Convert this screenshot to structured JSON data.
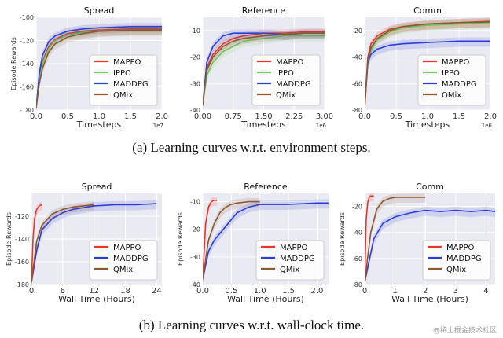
{
  "captions": {
    "top": "(a) Learning curves w.r.t. environment steps.",
    "bottom": "(b) Learning curves w.r.t. wall-clock time."
  },
  "watermark": "@稀土掘金技术社区",
  "colors": {
    "MAPPO": "#e8362a",
    "IPPO": "#6fcf5f",
    "MADDPG": "#2b3fd6",
    "QMix": "#8b5a34"
  },
  "chart_data": [
    {
      "type": "line",
      "title": "Spread",
      "xlabel": "Timesteps",
      "ylabel": "Episode Rewards",
      "xlim": [
        0,
        2.0
      ],
      "ylim": [
        -180,
        -100
      ],
      "xticks": [
        "0.0",
        "0.5",
        "1.0",
        "1.5",
        "2.0"
      ],
      "xtickvals": [
        0,
        0.5,
        1.0,
        1.5,
        2.0
      ],
      "yticks": [
        "-100",
        "-120",
        "-140",
        "-160",
        "-180"
      ],
      "ytickvals": [
        -100,
        -120,
        -140,
        -160,
        -180
      ],
      "xscale": "1e7",
      "legend": [
        "MAPPO",
        "IPPO",
        "MADDPG",
        "QMix"
      ],
      "legend_pos": "lower-right",
      "series": [
        {
          "name": "MAPPO",
          "x": [
            0,
            0.05,
            0.1,
            0.2,
            0.3,
            0.5,
            0.75,
            1.0,
            1.5,
            2.0
          ],
          "y": [
            -178,
            -152,
            -138,
            -125,
            -119,
            -114,
            -112,
            -111,
            -110,
            -110
          ]
        },
        {
          "name": "IPPO",
          "x": [
            0,
            0.05,
            0.1,
            0.2,
            0.3,
            0.5,
            0.75,
            1.0,
            1.5,
            2.0
          ],
          "y": [
            -178,
            -154,
            -140,
            -127,
            -120,
            -115,
            -113,
            -112,
            -111,
            -111
          ]
        },
        {
          "name": "MADDPG",
          "x": [
            0,
            0.05,
            0.1,
            0.2,
            0.3,
            0.5,
            0.75,
            1.0,
            1.5,
            2.0
          ],
          "y": [
            -178,
            -148,
            -133,
            -121,
            -116,
            -112,
            -110,
            -109,
            -108,
            -108
          ]
        },
        {
          "name": "QMix",
          "x": [
            0,
            0.05,
            0.1,
            0.2,
            0.3,
            0.5,
            0.75,
            1.0,
            1.5,
            2.0
          ],
          "y": [
            -178,
            -157,
            -144,
            -130,
            -123,
            -117,
            -114,
            -112,
            -111,
            -111
          ]
        }
      ]
    },
    {
      "type": "line",
      "title": "Reference",
      "xlabel": "Timesteps",
      "ylabel": "",
      "xlim": [
        0,
        3.0
      ],
      "ylim": [
        -40,
        -5
      ],
      "xticks": [
        "0.00",
        "0.75",
        "1.50",
        "2.25",
        "3.00"
      ],
      "xtickvals": [
        0,
        0.75,
        1.5,
        2.25,
        3.0
      ],
      "yticks": [
        "-10",
        "-20",
        "-30",
        "-40"
      ],
      "ytickvals": [
        -10,
        -20,
        -30,
        -40
      ],
      "xscale": "1e6",
      "legend": [
        "MAPPO",
        "IPPO",
        "MADDPG",
        "QMix"
      ],
      "legend_pos": "lower-right",
      "series": [
        {
          "name": "MAPPO",
          "x": [
            0,
            0.1,
            0.25,
            0.5,
            0.75,
            1.0,
            1.5,
            2.0,
            2.5,
            3.0
          ],
          "y": [
            -38,
            -24,
            -19,
            -15,
            -13,
            -12,
            -11,
            -11,
            -10.5,
            -10.5
          ]
        },
        {
          "name": "IPPO",
          "x": [
            0,
            0.1,
            0.25,
            0.5,
            0.75,
            1.0,
            1.5,
            2.0,
            2.5,
            3.0
          ],
          "y": [
            -38,
            -27,
            -22,
            -18,
            -16,
            -14,
            -13,
            -12,
            -12,
            -12
          ]
        },
        {
          "name": "MADDPG",
          "x": [
            0,
            0.1,
            0.25,
            0.5,
            0.75,
            1.0,
            1.5,
            2.0,
            2.5,
            3.0
          ],
          "y": [
            -38,
            -22,
            -16,
            -12,
            -11,
            -11,
            -11,
            -11.5,
            -11,
            -11
          ]
        },
        {
          "name": "QMix",
          "x": [
            0,
            0.1,
            0.25,
            0.5,
            0.75,
            1.0,
            1.5,
            2.0,
            2.5,
            3.0
          ],
          "y": [
            -38,
            -25,
            -20,
            -16,
            -14,
            -13,
            -12,
            -11.5,
            -11,
            -11
          ]
        }
      ]
    },
    {
      "type": "line",
      "title": "Comm",
      "xlabel": "Timesteps",
      "ylabel": "",
      "xlim": [
        0,
        2.0
      ],
      "ylim": [
        -80,
        -10
      ],
      "xticks": [
        "0.0",
        "0.5",
        "1.0",
        "1.5",
        "2.0"
      ],
      "xtickvals": [
        0,
        0.5,
        1.0,
        1.5,
        2.0
      ],
      "yticks": [
        "-20",
        "-40",
        "-60",
        "-80"
      ],
      "ytickvals": [
        -20,
        -40,
        -60,
        -80
      ],
      "xscale": "1e6",
      "legend": [
        "MAPPO",
        "IPPO",
        "MADDPG",
        "QMix"
      ],
      "legend_pos": "lower-right",
      "series": [
        {
          "name": "MAPPO",
          "x": [
            0,
            0.05,
            0.1,
            0.2,
            0.4,
            0.6,
            1.0,
            1.5,
            2.0
          ],
          "y": [
            -78,
            -40,
            -30,
            -24,
            -19,
            -17,
            -15,
            -14,
            -13
          ]
        },
        {
          "name": "IPPO",
          "x": [
            0,
            0.05,
            0.1,
            0.2,
            0.4,
            0.6,
            1.0,
            1.5,
            2.0
          ],
          "y": [
            -78,
            -45,
            -35,
            -27,
            -21,
            -18,
            -16,
            -15,
            -14
          ]
        },
        {
          "name": "MADDPG",
          "x": [
            0,
            0.05,
            0.1,
            0.2,
            0.4,
            0.6,
            1.0,
            1.5,
            2.0
          ],
          "y": [
            -78,
            -44,
            -38,
            -34,
            -31,
            -30,
            -29,
            -28,
            -28
          ]
        },
        {
          "name": "QMix",
          "x": [
            0,
            0.05,
            0.1,
            0.2,
            0.4,
            0.6,
            1.0,
            1.5,
            2.0
          ],
          "y": [
            -78,
            -42,
            -33,
            -26,
            -20,
            -17,
            -15,
            -14,
            -13.5
          ]
        }
      ]
    },
    {
      "type": "line",
      "title": "Spread",
      "xlabel": "Wall Time (Hours)",
      "ylabel": "Episode Rewards",
      "xlim": [
        0,
        25
      ],
      "ylim": [
        -180,
        -100
      ],
      "xticks": [
        "0",
        "6",
        "12",
        "18",
        "24"
      ],
      "xtickvals": [
        0,
        6,
        12,
        18,
        24
      ],
      "yticks": [
        "-120",
        "-140",
        "-160",
        "-180"
      ],
      "ytickvals": [
        -120,
        -140,
        -160,
        -180
      ],
      "xscale": "",
      "legend": [
        "MAPPO",
        "MADDPG",
        "QMix"
      ],
      "legend_pos": "lower-right",
      "series": [
        {
          "name": "MAPPO",
          "x": [
            0,
            0.3,
            0.6,
            1.0,
            1.5,
            2.0
          ],
          "y": [
            -178,
            -140,
            -122,
            -114,
            -111,
            -110
          ]
        },
        {
          "name": "MADDPG",
          "x": [
            0,
            1,
            2,
            4,
            6,
            8,
            12,
            16,
            20,
            24
          ],
          "y": [
            -178,
            -150,
            -132,
            -122,
            -117,
            -114,
            -111,
            -110,
            -110,
            -109
          ]
        },
        {
          "name": "QMix",
          "x": [
            0,
            1,
            2,
            4,
            6,
            8,
            10,
            12
          ],
          "y": [
            -178,
            -142,
            -128,
            -118,
            -114,
            -112,
            -111,
            -110
          ]
        }
      ]
    },
    {
      "type": "line",
      "title": "Reference",
      "xlabel": "Wall Time (Hours)",
      "ylabel": "Episode Rewards",
      "xlim": [
        0,
        2.2
      ],
      "ylim": [
        -40,
        -7
      ],
      "xticks": [
        "0.0",
        "0.5",
        "1.0",
        "1.5",
        "2.0"
      ],
      "xtickvals": [
        0,
        0.5,
        1.0,
        1.5,
        2.0
      ],
      "yticks": [
        "-10",
        "-20",
        "-30",
        "-40"
      ],
      "ytickvals": [
        -10,
        -20,
        -30,
        -40
      ],
      "xscale": "",
      "legend": [
        "MAPPO",
        "MADDPG",
        "QMix"
      ],
      "legend_pos": "lower-right",
      "series": [
        {
          "name": "MAPPO",
          "x": [
            0,
            0.05,
            0.1,
            0.15,
            0.2,
            0.25
          ],
          "y": [
            -38,
            -18,
            -12,
            -10,
            -9.5,
            -9.5
          ]
        },
        {
          "name": "MADDPG",
          "x": [
            0,
            0.1,
            0.2,
            0.4,
            0.6,
            0.8,
            1.0,
            1.5,
            2.0,
            2.2
          ],
          "y": [
            -38,
            -28,
            -24,
            -19,
            -14,
            -12,
            -11,
            -11,
            -10.5,
            -10.5
          ]
        },
        {
          "name": "QMix",
          "x": [
            0,
            0.1,
            0.2,
            0.3,
            0.4,
            0.5,
            0.6,
            0.8,
            1.0
          ],
          "y": [
            -38,
            -24,
            -18,
            -14,
            -12,
            -11,
            -10.5,
            -10,
            -10
          ]
        }
      ]
    },
    {
      "type": "line",
      "title": "Comm",
      "xlabel": "Wall Time (Hours)",
      "ylabel": "Episode Rewards",
      "xlim": [
        0,
        4.3
      ],
      "ylim": [
        -80,
        -10
      ],
      "xticks": [
        "0",
        "1",
        "2",
        "3",
        "4"
      ],
      "xtickvals": [
        0,
        1,
        2,
        3,
        4
      ],
      "yticks": [
        "-20",
        "-40",
        "-60",
        "-80"
      ],
      "ytickvals": [
        -20,
        -40,
        -60,
        -80
      ],
      "xscale": "",
      "legend": [
        "MAPPO",
        "MADDPG",
        "QMix"
      ],
      "legend_pos": "lower-right",
      "series": [
        {
          "name": "MAPPO",
          "x": [
            0,
            0.05,
            0.1,
            0.15,
            0.2,
            0.3
          ],
          "y": [
            -78,
            -30,
            -17,
            -13,
            -12,
            -12
          ]
        },
        {
          "name": "MADDPG",
          "x": [
            0,
            0.3,
            0.6,
            1.0,
            1.5,
            2.0,
            2.5,
            3.0,
            3.5,
            4.0,
            4.3
          ],
          "y": [
            -78,
            -45,
            -33,
            -28,
            -25,
            -23,
            -24,
            -23,
            -24,
            -23,
            -24
          ]
        },
        {
          "name": "QMix",
          "x": [
            0,
            0.2,
            0.4,
            0.6,
            0.8,
            1.0,
            1.3,
            1.6,
            2.0
          ],
          "y": [
            -78,
            -40,
            -22,
            -16,
            -14,
            -13,
            -13,
            -13,
            -13
          ]
        }
      ]
    }
  ]
}
